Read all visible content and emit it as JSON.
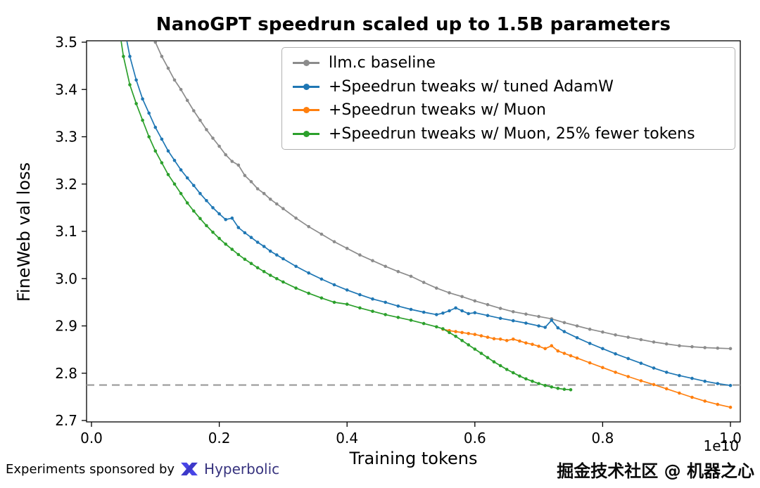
{
  "chart_data": {
    "type": "line",
    "title": "NanoGPT speedrun scaled up to 1.5B parameters",
    "xlabel": "Training tokens",
    "ylabel": "FineWeb val loss",
    "axis_offset_label": "1e10",
    "xlim": [
      0.0,
      1.0
    ],
    "ylim": [
      2.7,
      3.5
    ],
    "grid": false,
    "legend_position": "upper center",
    "xticks": [
      0.0,
      0.2,
      0.4,
      0.6,
      0.8,
      1.0
    ],
    "xtick_labels": [
      "0.0",
      "0.2",
      "0.4",
      "0.6",
      "0.8",
      "1.0"
    ],
    "yticks": [
      2.7,
      2.8,
      2.9,
      3.0,
      3.1,
      3.2,
      3.3,
      3.4,
      3.5
    ],
    "ytick_labels": [
      "2.7",
      "2.8",
      "2.9",
      "3.0",
      "3.1",
      "3.2",
      "3.3",
      "3.4",
      "3.5"
    ],
    "target_line": {
      "y": 2.775,
      "style": "dashed",
      "color": "#9a9a9a"
    },
    "series": [
      {
        "name": "llm.c baseline",
        "color": "#8c8c8c",
        "x": [
          0.09,
          0.1,
          0.11,
          0.12,
          0.13,
          0.14,
          0.15,
          0.16,
          0.17,
          0.18,
          0.19,
          0.2,
          0.21,
          0.22,
          0.23,
          0.24,
          0.25,
          0.26,
          0.27,
          0.28,
          0.29,
          0.3,
          0.32,
          0.34,
          0.36,
          0.38,
          0.4,
          0.42,
          0.44,
          0.46,
          0.48,
          0.5,
          0.52,
          0.54,
          0.56,
          0.58,
          0.6,
          0.62,
          0.64,
          0.66,
          0.68,
          0.7,
          0.72,
          0.74,
          0.76,
          0.78,
          0.8,
          0.82,
          0.84,
          0.86,
          0.88,
          0.9,
          0.92,
          0.94,
          0.96,
          0.98,
          1.0
        ],
        "y": [
          3.545,
          3.5,
          3.47,
          3.445,
          3.42,
          3.4,
          3.377,
          3.355,
          3.335,
          3.315,
          3.297,
          3.28,
          3.262,
          3.248,
          3.24,
          3.218,
          3.205,
          3.19,
          3.18,
          3.168,
          3.158,
          3.148,
          3.128,
          3.11,
          3.094,
          3.078,
          3.064,
          3.05,
          3.038,
          3.026,
          3.015,
          3.005,
          2.992,
          2.98,
          2.97,
          2.962,
          2.953,
          2.945,
          2.937,
          2.93,
          2.925,
          2.92,
          2.915,
          2.907,
          2.9,
          2.893,
          2.887,
          2.881,
          2.876,
          2.871,
          2.866,
          2.862,
          2.858,
          2.856,
          2.854,
          2.853,
          2.852
        ]
      },
      {
        "name": "+Speedrun tweaks w/ tuned AdamW",
        "color": "#1f77b4",
        "x": [
          0.05,
          0.06,
          0.07,
          0.08,
          0.09,
          0.1,
          0.11,
          0.12,
          0.13,
          0.14,
          0.15,
          0.16,
          0.17,
          0.18,
          0.19,
          0.2,
          0.21,
          0.22,
          0.23,
          0.24,
          0.25,
          0.26,
          0.27,
          0.28,
          0.29,
          0.3,
          0.32,
          0.34,
          0.36,
          0.38,
          0.4,
          0.42,
          0.44,
          0.46,
          0.48,
          0.5,
          0.52,
          0.54,
          0.55,
          0.56,
          0.57,
          0.58,
          0.59,
          0.6,
          0.62,
          0.64,
          0.66,
          0.68,
          0.7,
          0.71,
          0.72,
          0.73,
          0.74,
          0.76,
          0.78,
          0.8,
          0.82,
          0.84,
          0.86,
          0.88,
          0.9,
          0.92,
          0.94,
          0.96,
          0.98,
          1.0
        ],
        "y": [
          3.54,
          3.47,
          3.42,
          3.38,
          3.35,
          3.32,
          3.295,
          3.27,
          3.25,
          3.23,
          3.213,
          3.197,
          3.18,
          3.165,
          3.15,
          3.137,
          3.125,
          3.128,
          3.108,
          3.097,
          3.087,
          3.077,
          3.068,
          3.058,
          3.05,
          3.042,
          3.026,
          3.012,
          2.999,
          2.987,
          2.976,
          2.966,
          2.957,
          2.95,
          2.942,
          2.935,
          2.929,
          2.924,
          2.927,
          2.932,
          2.938,
          2.932,
          2.926,
          2.928,
          2.922,
          2.916,
          2.911,
          2.906,
          2.9,
          2.897,
          2.912,
          2.896,
          2.888,
          2.875,
          2.863,
          2.852,
          2.841,
          2.831,
          2.821,
          2.811,
          2.802,
          2.795,
          2.789,
          2.783,
          2.778,
          2.774
        ]
      },
      {
        "name": "+Speedrun tweaks w/ Muon",
        "color": "#ff7f0e",
        "x": [
          0.55,
          0.56,
          0.57,
          0.58,
          0.59,
          0.6,
          0.61,
          0.62,
          0.63,
          0.64,
          0.65,
          0.66,
          0.67,
          0.68,
          0.69,
          0.7,
          0.71,
          0.72,
          0.73,
          0.74,
          0.75,
          0.76,
          0.78,
          0.8,
          0.82,
          0.84,
          0.86,
          0.88,
          0.9,
          0.92,
          0.94,
          0.96,
          0.98,
          1.0
        ],
        "y": [
          2.893,
          2.89,
          2.888,
          2.886,
          2.884,
          2.882,
          2.879,
          2.876,
          2.873,
          2.872,
          2.869,
          2.872,
          2.868,
          2.864,
          2.861,
          2.857,
          2.852,
          2.858,
          2.847,
          2.842,
          2.837,
          2.832,
          2.822,
          2.812,
          2.802,
          2.793,
          2.784,
          2.776,
          2.767,
          2.758,
          2.749,
          2.741,
          2.734,
          2.728
        ]
      },
      {
        "name": "+Speedrun tweaks w/ Muon, 25% fewer tokens",
        "color": "#2ca02c",
        "x": [
          0.04,
          0.05,
          0.06,
          0.07,
          0.08,
          0.09,
          0.1,
          0.11,
          0.12,
          0.13,
          0.14,
          0.15,
          0.16,
          0.17,
          0.18,
          0.19,
          0.2,
          0.21,
          0.22,
          0.23,
          0.24,
          0.25,
          0.26,
          0.27,
          0.28,
          0.29,
          0.3,
          0.32,
          0.34,
          0.36,
          0.38,
          0.4,
          0.42,
          0.44,
          0.46,
          0.48,
          0.5,
          0.52,
          0.54,
          0.55,
          0.56,
          0.57,
          0.58,
          0.59,
          0.6,
          0.61,
          0.62,
          0.63,
          0.64,
          0.65,
          0.66,
          0.67,
          0.68,
          0.69,
          0.7,
          0.71,
          0.72,
          0.73,
          0.74,
          0.75
        ],
        "y": [
          3.56,
          3.47,
          3.41,
          3.37,
          3.335,
          3.3,
          3.27,
          3.245,
          3.22,
          3.2,
          3.18,
          3.16,
          3.143,
          3.127,
          3.112,
          3.098,
          3.085,
          3.073,
          3.062,
          3.051,
          3.041,
          3.032,
          3.023,
          3.015,
          3.007,
          3.0,
          2.993,
          2.98,
          2.969,
          2.959,
          2.95,
          2.946,
          2.938,
          2.931,
          2.924,
          2.918,
          2.912,
          2.905,
          2.898,
          2.894,
          2.886,
          2.878,
          2.869,
          2.86,
          2.851,
          2.842,
          2.833,
          2.824,
          2.816,
          2.808,
          2.801,
          2.794,
          2.788,
          2.783,
          2.778,
          2.774,
          2.771,
          2.768,
          2.766,
          2.765
        ]
      }
    ]
  },
  "footer": {
    "sponsor_prefix": "Experiments sponsored by",
    "sponsor_name": "Hyperbolic",
    "watermark": "掘金技术社区 @ 机器之心"
  }
}
